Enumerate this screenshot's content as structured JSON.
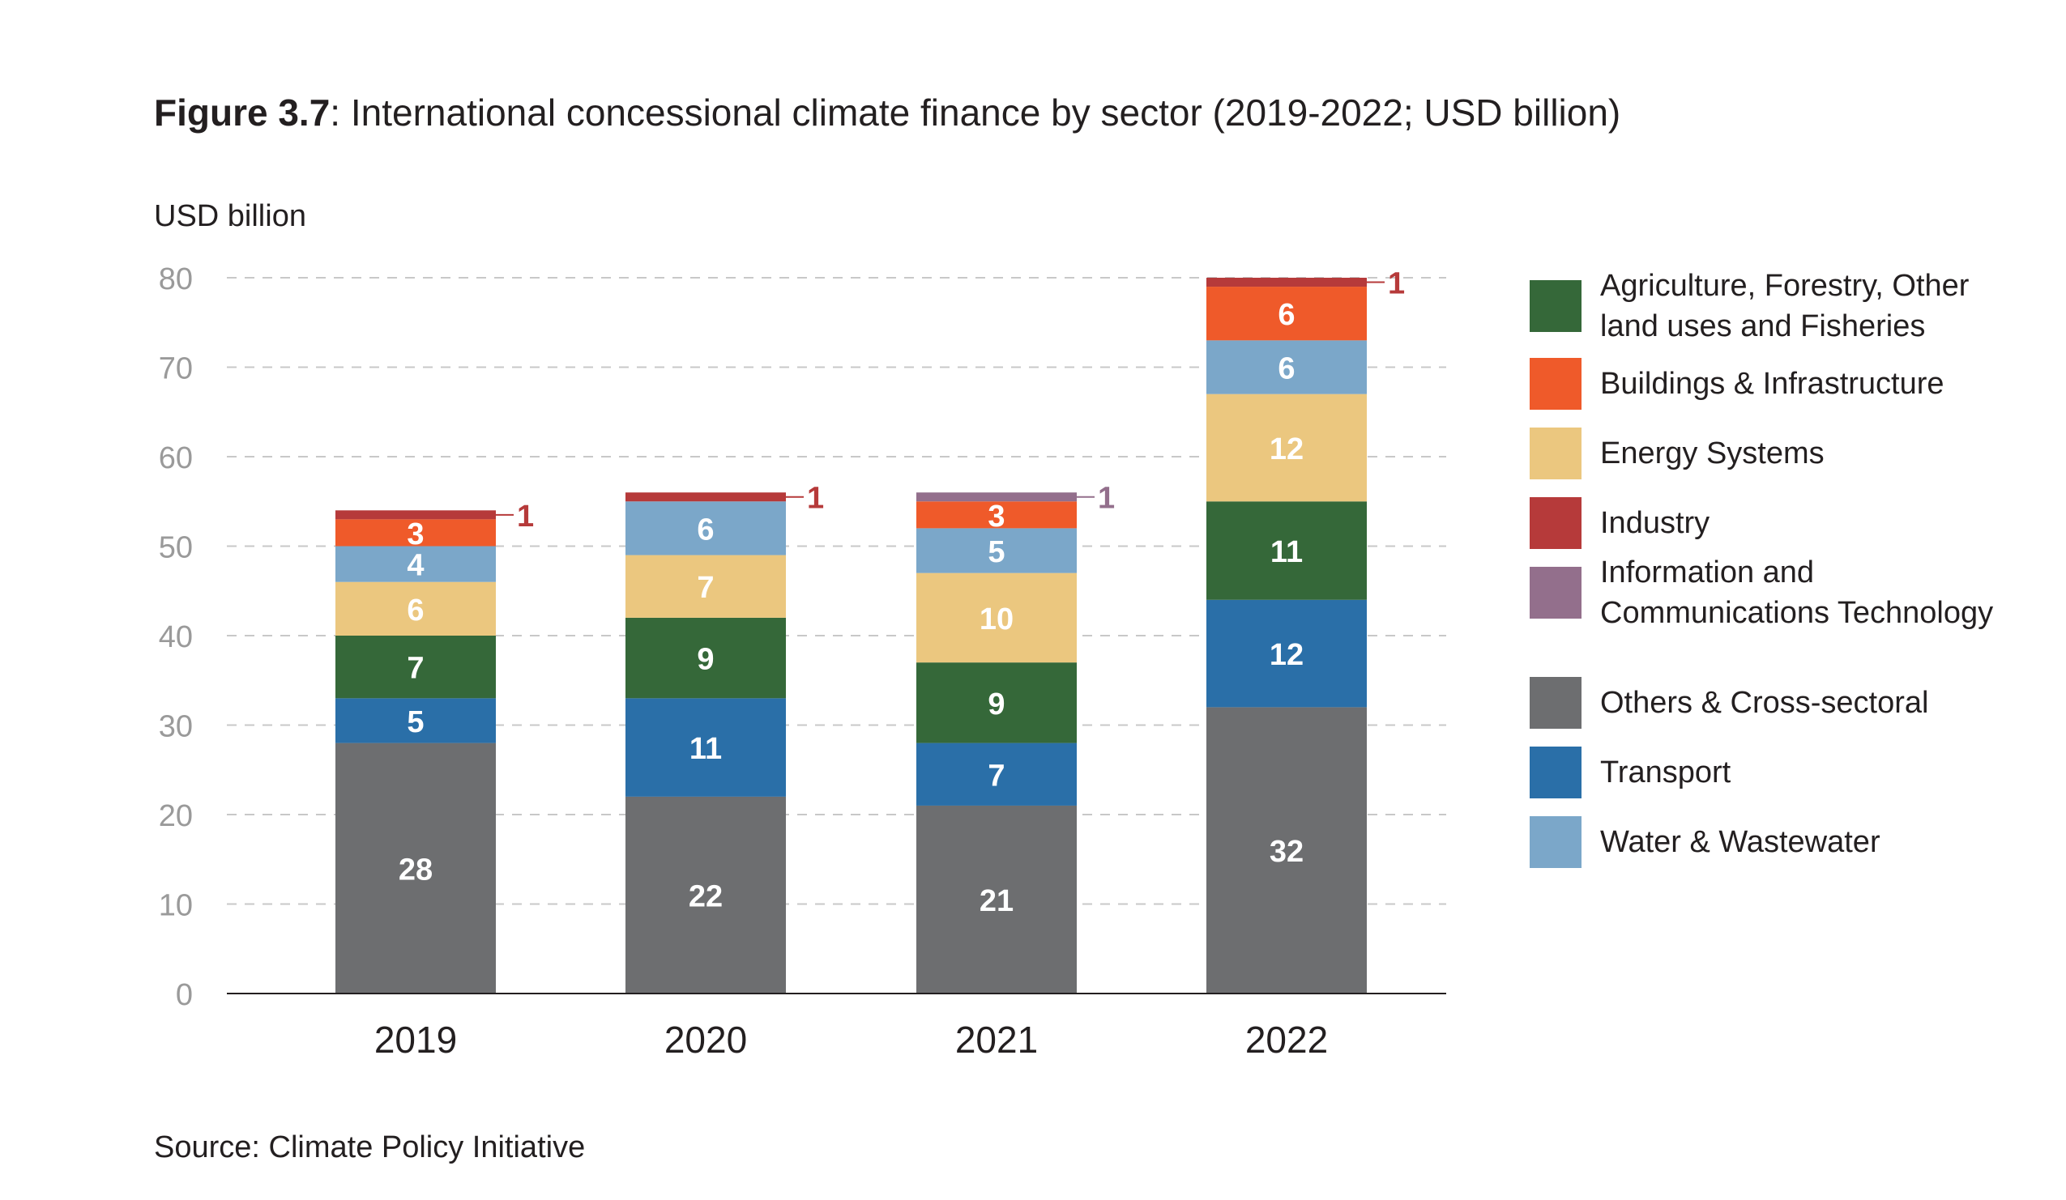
{
  "title_bold": "Figure 3.7",
  "title_rest": ": International concessional climate finance by sector (2019-2022; USD billion)",
  "source": "Source: Climate Policy Initiative",
  "chart_data": {
    "type": "bar",
    "stacked": true,
    "title": "Figure 3.7: International concessional climate finance by sector (2019-2022; USD billion)",
    "ylabel": "USD billion",
    "xlabel": "",
    "ylim": [
      0,
      80
    ],
    "yticks": [
      0,
      10,
      20,
      30,
      40,
      50,
      60,
      70,
      80
    ],
    "grid": "horizontal dashed",
    "legend_position": "right",
    "categories": [
      "2019",
      "2020",
      "2021",
      "2022"
    ],
    "series": [
      {
        "name": "Others & Cross-sectoral",
        "color": "#6d6e70",
        "values": [
          28,
          22,
          21,
          32
        ]
      },
      {
        "name": "Transport",
        "color": "#2a6fa8",
        "values": [
          5,
          11,
          7,
          12
        ]
      },
      {
        "name": "Agriculture, Forestry, Other land uses and Fisheries",
        "color": "#356839",
        "values": [
          7,
          9,
          9,
          11
        ]
      },
      {
        "name": "Energy Systems",
        "color": "#ebc77f",
        "values": [
          6,
          7,
          10,
          12
        ]
      },
      {
        "name": "Water & Wastewater",
        "color": "#7ba7c9",
        "values": [
          4,
          6,
          5,
          6
        ]
      },
      {
        "name": "Buildings & Infrastructure",
        "color": "#ef5a2a",
        "values": [
          3,
          0,
          3,
          6
        ]
      },
      {
        "name": "Information and Communications Technology",
        "color": "#936f8c",
        "values": [
          0,
          0,
          1,
          0
        ]
      },
      {
        "name": "Industry",
        "color": "#b63a3a",
        "values": [
          1,
          1,
          0,
          1
        ]
      }
    ],
    "callouts": [
      {
        "category": "2019",
        "series": "Industry",
        "label": "1",
        "color": "#b63a3a"
      },
      {
        "category": "2020",
        "series": "Industry",
        "label": "1",
        "color": "#b63a3a"
      },
      {
        "category": "2021",
        "series": "Information and Communications Technology",
        "label": "1",
        "color": "#936f8c"
      },
      {
        "category": "2022",
        "series": "Industry",
        "label": "1",
        "color": "#b63a3a"
      }
    ]
  },
  "legend": [
    {
      "lines": [
        "Agriculture, Forestry, Other",
        "land uses and Fisheries"
      ],
      "color": "#356839"
    },
    {
      "lines": [
        "Buildings & Infrastructure"
      ],
      "color": "#ef5a2a"
    },
    {
      "lines": [
        "Energy Systems"
      ],
      "color": "#ebc77f"
    },
    {
      "lines": [
        "Industry"
      ],
      "color": "#b63a3a"
    },
    {
      "lines": [
        "Information and",
        "Communications Technology"
      ],
      "color": "#936f8c"
    },
    {
      "lines": [
        "Others & Cross-sectoral"
      ],
      "color": "#6d6e70"
    },
    {
      "lines": [
        "Transport"
      ],
      "color": "#2a6fa8"
    },
    {
      "lines": [
        "Water & Wastewater"
      ],
      "color": "#7ba7c9"
    }
  ]
}
